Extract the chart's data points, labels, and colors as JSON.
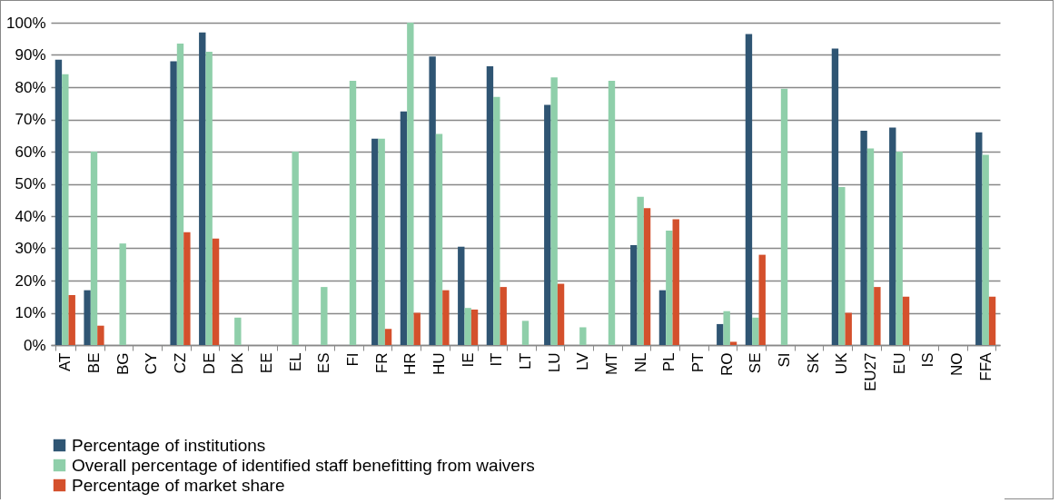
{
  "chart_data": {
    "type": "bar",
    "categories": [
      "AT",
      "BE",
      "BG",
      "CY",
      "CZ",
      "DE",
      "DK",
      "EE",
      "EL",
      "ES",
      "FI",
      "FR",
      "HR",
      "HU",
      "IE",
      "IT",
      "LT",
      "LU",
      "LV",
      "MT",
      "NL",
      "PL",
      "PT",
      "RO",
      "SE",
      "SI",
      "SK",
      "UK",
      "EU27",
      "EU",
      "IS",
      "NO",
      "FFA"
    ],
    "series": [
      {
        "name": "Percentage of institutions",
        "color": "#2f5573",
        "values": [
          88.5,
          17,
          null,
          null,
          88,
          97,
          null,
          null,
          null,
          null,
          null,
          64,
          72.5,
          89.5,
          30.5,
          86.5,
          null,
          74.5,
          null,
          null,
          31,
          17,
          null,
          6.5,
          96.5,
          null,
          null,
          92,
          66.5,
          67.5,
          null,
          null,
          66
        ]
      },
      {
        "name": "Overall percentage of identified staff benefitting from waivers",
        "color": "#8fcfaa",
        "values": [
          84,
          60,
          31.5,
          null,
          93.5,
          91,
          8.5,
          null,
          60,
          18,
          82,
          64,
          100,
          65.5,
          11.5,
          77,
          7.5,
          83,
          5.5,
          82,
          46,
          35.5,
          null,
          10.5,
          8.5,
          79.5,
          null,
          49,
          61,
          60,
          null,
          null,
          59
        ]
      },
      {
        "name": "Percentage of market share",
        "color": "#d4502c",
        "values": [
          15.5,
          6,
          null,
          null,
          35,
          33,
          null,
          null,
          null,
          null,
          null,
          5,
          10,
          17,
          11,
          18,
          null,
          19,
          null,
          null,
          42.5,
          39,
          null,
          1,
          28,
          null,
          null,
          10,
          18,
          15,
          null,
          null,
          15
        ]
      }
    ],
    "ylim": [
      0,
      100
    ],
    "yticks": [
      {
        "value": 0,
        "label": "0%"
      },
      {
        "value": 10,
        "label": "10%"
      },
      {
        "value": 20,
        "label": "20%"
      },
      {
        "value": 30,
        "label": "30%"
      },
      {
        "value": 40,
        "label": "40%"
      },
      {
        "value": 50,
        "label": "50%"
      },
      {
        "value": 60,
        "label": "60%"
      },
      {
        "value": 70,
        "label": "70%"
      },
      {
        "value": 80,
        "label": "80%"
      },
      {
        "value": 90,
        "label": "90%"
      },
      {
        "value": 100,
        "label": "100%"
      }
    ],
    "grid": "y",
    "legend": "bottom"
  }
}
